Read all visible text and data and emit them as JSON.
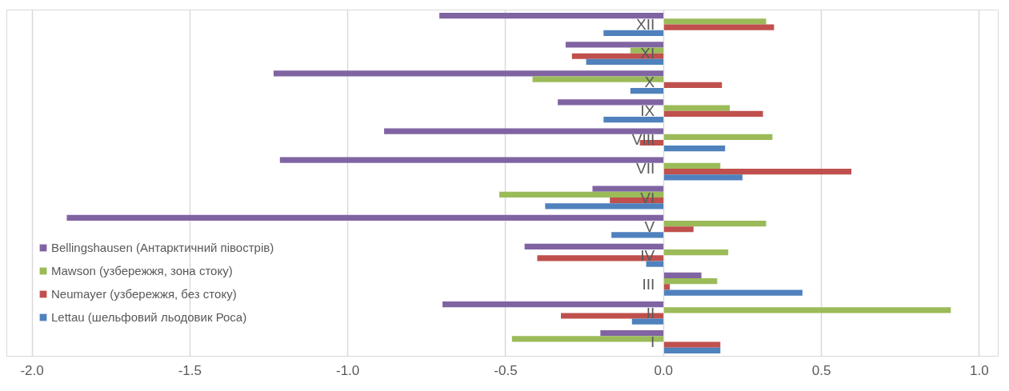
{
  "chart_data": {
    "type": "bar",
    "orientation": "horizontal",
    "categories": [
      "XII",
      "XI",
      "X",
      "IX",
      "VIII",
      "VII",
      "VI",
      "V",
      "IV",
      "III",
      "II",
      "I"
    ],
    "series": [
      {
        "name": "Bellingshausen (Антарктичний півострів)",
        "color": "#8064a2",
        "values": [
          -0.71,
          -0.31,
          -1.235,
          -0.335,
          -0.885,
          -1.215,
          -0.225,
          -1.89,
          -0.44,
          0.12,
          -0.7,
          -0.2
        ]
      },
      {
        "name": "Mawson (узбережжя, зона стоку)",
        "color": "#9bbb59",
        "values": [
          0.325,
          -0.105,
          -0.415,
          0.21,
          0.345,
          0.18,
          -0.52,
          0.325,
          0.205,
          0.17,
          0.91,
          -0.48
        ]
      },
      {
        "name": "Neumayer (узбережжя, без стоку)",
        "color": "#c0504d",
        "values": [
          0.35,
          -0.29,
          0.185,
          0.315,
          -0.075,
          0.595,
          -0.17,
          0.095,
          -0.4,
          0.02,
          -0.325,
          0.18
        ]
      },
      {
        "name": "Lettau (шельфовий льодовик Роса)",
        "color": "#4f81bd",
        "values": [
          -0.19,
          -0.245,
          -0.105,
          -0.19,
          0.195,
          0.25,
          -0.375,
          -0.165,
          -0.055,
          0.44,
          -0.1,
          0.18
        ]
      }
    ],
    "xlim": [
      -2.08,
      1.06
    ],
    "xticks": [
      {
        "value": -2,
        "label": "-2.0"
      },
      {
        "value": -1.5,
        "label": "-1.5"
      },
      {
        "value": -1,
        "label": "-1.0"
      },
      {
        "value": -0.5,
        "label": "-0.5"
      },
      {
        "value": 0,
        "label": "0.0"
      },
      0.5,
      {
        "value": 1,
        "label": "1.0"
      }
    ],
    "grid": "x",
    "legend": "bottom left"
  }
}
